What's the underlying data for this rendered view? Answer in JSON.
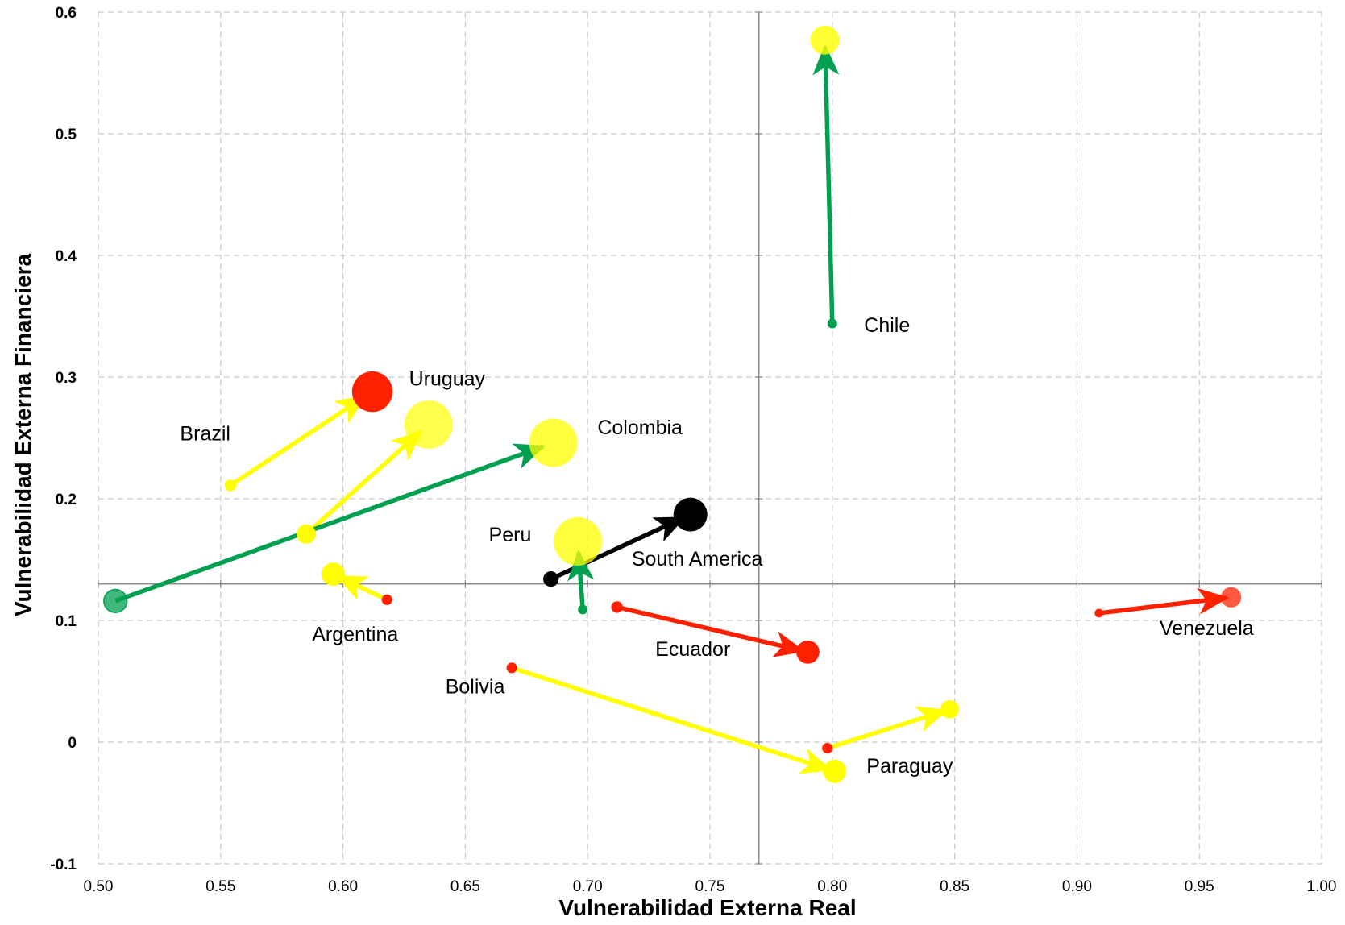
{
  "chart_data": {
    "type": "scatter",
    "title": "",
    "xlabel": "Vulnerabilidad Externa Real",
    "ylabel": "Vulnerabilidad Externa Financiera",
    "xlim": [
      0.5,
      1.0
    ],
    "ylim": [
      -0.1,
      0.6
    ],
    "x_ticks": [
      0.5,
      0.55,
      0.6,
      0.65,
      0.7,
      0.75,
      0.8,
      0.85,
      0.9,
      0.95,
      1.0
    ],
    "x_tick_labels": [
      "0.50",
      "0.55",
      "0.60",
      "0.65",
      "0.70",
      "0.75",
      "0.80",
      "0.85",
      "0.90",
      "0.95",
      "1.00"
    ],
    "y_ticks": [
      -0.1,
      0,
      0.1,
      0.2,
      0.3,
      0.4,
      0.5,
      0.6
    ],
    "y_tick_labels": [
      "-0.1",
      "0",
      "0.1",
      "0.2",
      "0.3",
      "0.4",
      "0.5",
      "0.6"
    ],
    "reference_lines": {
      "x": 0.77,
      "y": 0.13
    },
    "grid": true,
    "colors": {
      "green": "#00a050",
      "yellow": "#ffff00",
      "red": "#ff2000",
      "black": "#000000",
      "grid": "#c8c8d2",
      "reference": "#8c8c8c"
    },
    "series": [
      {
        "name": "Chile",
        "start": [
          0.8,
          0.344
        ],
        "end": [
          0.797,
          0.577
        ],
        "arrow_color": "green",
        "start_color": "green",
        "end_color": "yellow",
        "start_size": 1,
        "end_size": 3,
        "end_opacity": 0.8
      },
      {
        "name": "Uruguay",
        "start": [
          0.585,
          0.171
        ],
        "end": [
          0.635,
          0.261
        ],
        "arrow_color": "yellow",
        "start_color": "yellow",
        "end_color": "yellow",
        "start_size": 2,
        "end_size": 5,
        "end_opacity": 0.7
      },
      {
        "name": "Brazil",
        "start": [
          0.554,
          0.211
        ],
        "end": [
          0.612,
          0.288
        ],
        "arrow_color": "yellow",
        "start_color": "yellow",
        "end_color": "red",
        "start_size": 1.2,
        "end_size": 4.2,
        "end_opacity": 1
      },
      {
        "name": "Colombia",
        "start": [
          0.507,
          0.116
        ],
        "end": [
          0.686,
          0.246
        ],
        "arrow_color": "green",
        "start_color": "green",
        "end_color": "yellow",
        "start_size": 2.4,
        "end_size": 5,
        "end_opacity": 0.75,
        "start_opacity": 0.75
      },
      {
        "name": "South America",
        "start": [
          0.685,
          0.134
        ],
        "end": [
          0.742,
          0.187
        ],
        "arrow_color": "black",
        "start_color": "black",
        "end_color": "black",
        "start_size": 1.6,
        "end_size": 3.5,
        "end_opacity": 1
      },
      {
        "name": "Peru",
        "start": [
          0.698,
          0.109
        ],
        "end": [
          0.696,
          0.165
        ],
        "arrow_color": "green",
        "start_color": "green",
        "end_color": "yellow",
        "start_size": 1,
        "end_size": 5,
        "end_opacity": 0.75
      },
      {
        "name": "Argentina",
        "start": [
          0.618,
          0.117
        ],
        "end": [
          0.596,
          0.138
        ],
        "arrow_color": "yellow",
        "start_color": "red",
        "end_color": "yellow",
        "start_size": 1.1,
        "end_size": 2.4,
        "end_opacity": 1
      },
      {
        "name": "Ecuador",
        "start": [
          0.712,
          0.111
        ],
        "end": [
          0.79,
          0.074
        ],
        "arrow_color": "red",
        "start_color": "red",
        "end_color": "red",
        "start_size": 1.2,
        "end_size": 2.4,
        "end_opacity": 1
      },
      {
        "name": "Venezuela",
        "start": [
          0.909,
          0.106
        ],
        "end": [
          0.963,
          0.119
        ],
        "arrow_color": "red",
        "start_color": "red",
        "end_color": "red",
        "start_size": 0.9,
        "end_size": 2.1,
        "end_opacity": 0.75
      },
      {
        "name": "Bolivia",
        "start": [
          0.669,
          0.061
        ],
        "end": [
          0.801,
          -0.024
        ],
        "arrow_color": "yellow",
        "start_color": "red",
        "end_color": "yellow",
        "start_size": 1.1,
        "end_size": 2.4,
        "end_opacity": 1
      },
      {
        "name": "Paraguay",
        "start": [
          0.798,
          -0.005
        ],
        "end": [
          0.848,
          0.027
        ],
        "arrow_color": "yellow",
        "start_color": "red",
        "end_color": "yellow",
        "start_size": 1.1,
        "end_size": 1.9,
        "end_opacity": 1
      }
    ],
    "labels": [
      {
        "text": "Chile",
        "x": 0.813,
        "y": 0.337,
        "anchor": "start"
      },
      {
        "text": "Uruguay",
        "x": 0.627,
        "y": 0.293,
        "anchor": "start"
      },
      {
        "text": "Brazil",
        "x": 0.554,
        "y": 0.248,
        "anchor": "end"
      },
      {
        "text": "Colombia",
        "x": 0.704,
        "y": 0.253,
        "anchor": "start"
      },
      {
        "text": "Peru",
        "x": 0.677,
        "y": 0.165,
        "anchor": "end"
      },
      {
        "text": "South America",
        "x": 0.718,
        "y": 0.145,
        "anchor": "start"
      },
      {
        "text": "Argentina",
        "x": 0.605,
        "y": 0.083,
        "anchor": "middle"
      },
      {
        "text": "Ecuador",
        "x": 0.743,
        "y": 0.071,
        "anchor": "middle"
      },
      {
        "text": "Venezuela",
        "x": 0.953,
        "y": 0.088,
        "anchor": "middle"
      },
      {
        "text": "Bolivia",
        "x": 0.654,
        "y": 0.04,
        "anchor": "middle"
      },
      {
        "text": "Paraguay",
        "x": 0.814,
        "y": -0.025,
        "anchor": "start"
      }
    ]
  }
}
